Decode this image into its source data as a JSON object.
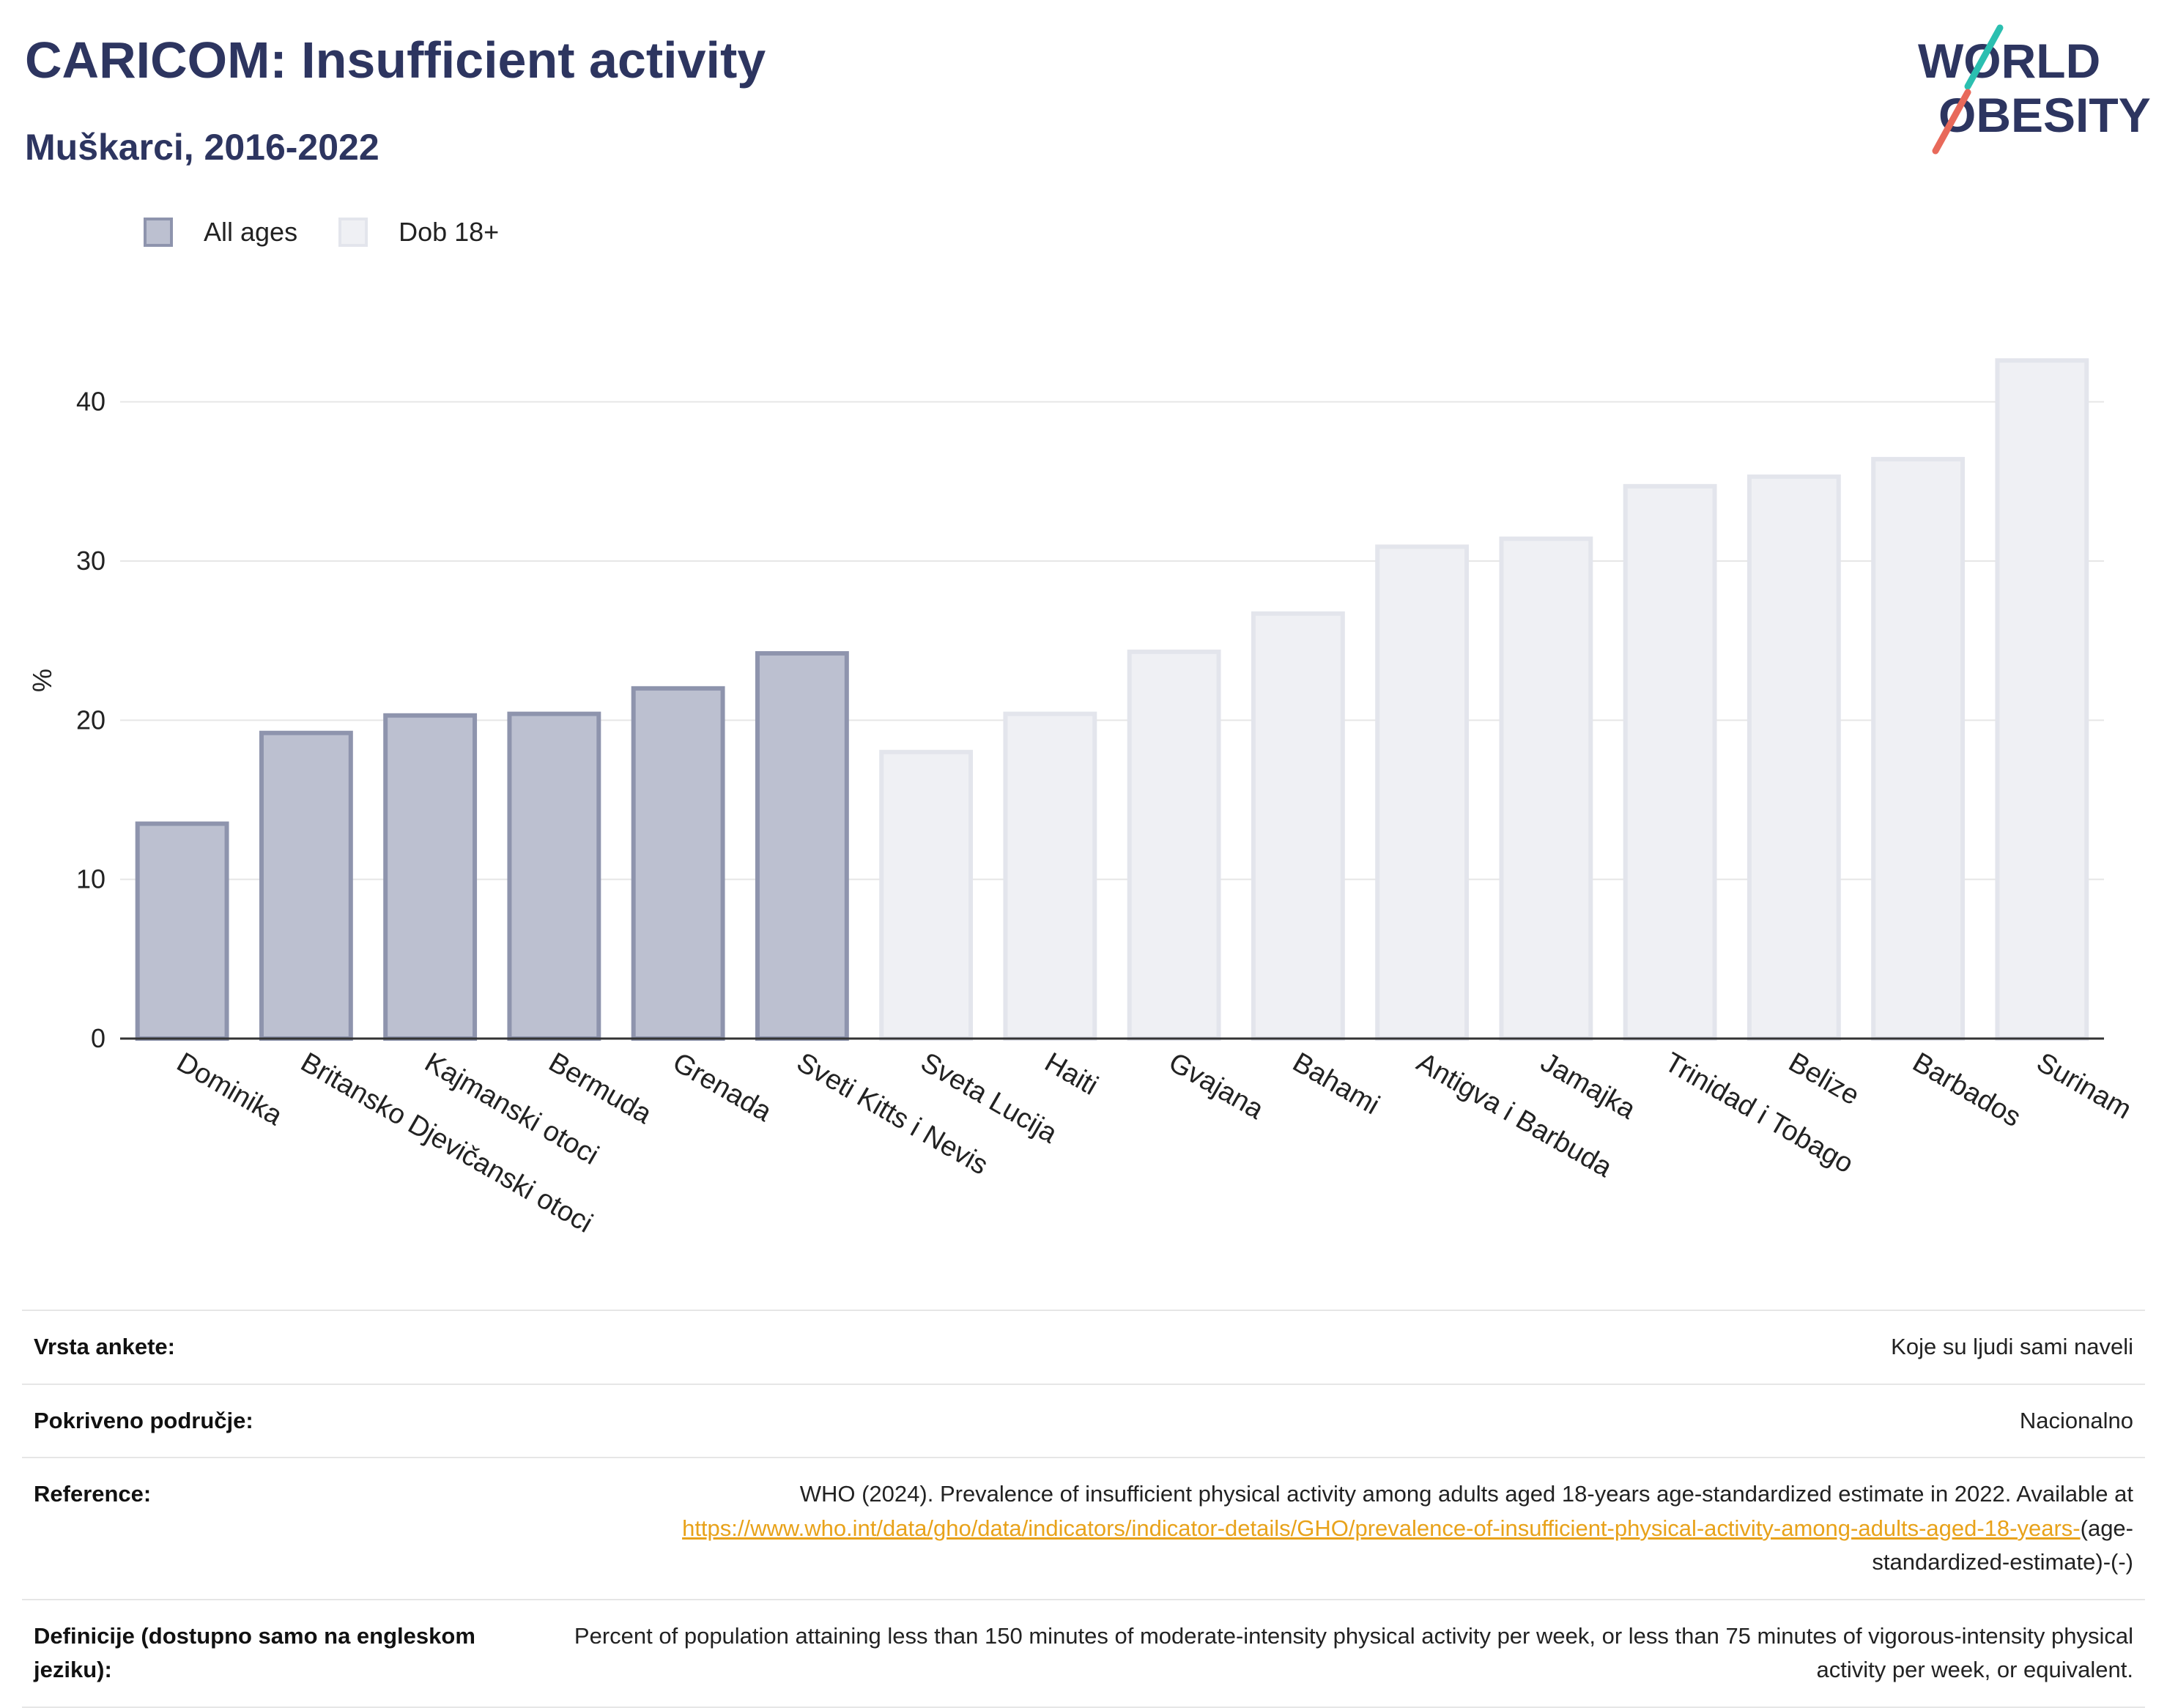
{
  "header": {
    "title": "CARICOM: Insufficient activity",
    "subtitle": "Muškarci, 2016-2022"
  },
  "logo": {
    "line1": "WORLD",
    "line2": "OBESITY",
    "accent_colors": [
      "#2bbfb0",
      "#e8695a"
    ]
  },
  "legend": [
    {
      "label": "All ages",
      "color": "#bcc0d0",
      "border": "#8e94ad"
    },
    {
      "label": "Dob 18+",
      "color": "#eff0f4",
      "border": "#e3e5ec"
    }
  ],
  "chart_data": {
    "type": "bar",
    "ylabel": "%",
    "ylim": [
      0,
      45
    ],
    "yticks": [
      0,
      10,
      20,
      30,
      40
    ],
    "grid": true,
    "legend_position": "top-left",
    "categories": [
      "Dominika",
      "Britansko Djevičanski otoci",
      "Kajmanski otoci",
      "Bermuda",
      "Grenada",
      "Sveti Kitts i Nevis",
      "Sveta Lucija",
      "Haiti",
      "Gvajana",
      "Bahami",
      "Antigva i Barbuda",
      "Jamajka",
      "Trinidad i Tobago",
      "Belize",
      "Barbados",
      "Surinam"
    ],
    "series": [
      {
        "name": "All ages",
        "values": [
          13.5,
          19.2,
          20.3,
          20.4,
          22.0,
          24.2,
          null,
          null,
          null,
          null,
          null,
          null,
          null,
          null,
          null,
          null
        ]
      },
      {
        "name": "Dob 18+",
        "values": [
          null,
          null,
          null,
          null,
          null,
          null,
          18.0,
          20.4,
          24.3,
          26.7,
          30.9,
          31.4,
          34.7,
          35.3,
          36.4,
          42.6
        ]
      }
    ]
  },
  "info": {
    "survey_type": {
      "label": "Vrsta ankete:",
      "value": "Koje su ljudi sami naveli"
    },
    "coverage": {
      "label": "Pokriveno područje:",
      "value": "Nacionalno"
    },
    "reference": {
      "label": "Reference:",
      "text": "WHO (2024). Prevalence of insufficient physical activity among adults aged 18-years age-standardized estimate in 2022. Available at",
      "link": "https://www.who.int/data/gho/data/indicators/indicator-details/GHO/prevalence-of-insufficient-physical-activity-among-adults-aged-18-years-",
      "suffix": "(age-standardized-estimate)-(-)"
    },
    "definitions": {
      "label": "Definicije (dostupno samo na engleskom jeziku):",
      "value": "Percent of population attaining less than 150 minutes of moderate-intensity physical activity per week, or less than 75 minutes of vigorous-intensity physical activity per week, or equivalent."
    }
  }
}
